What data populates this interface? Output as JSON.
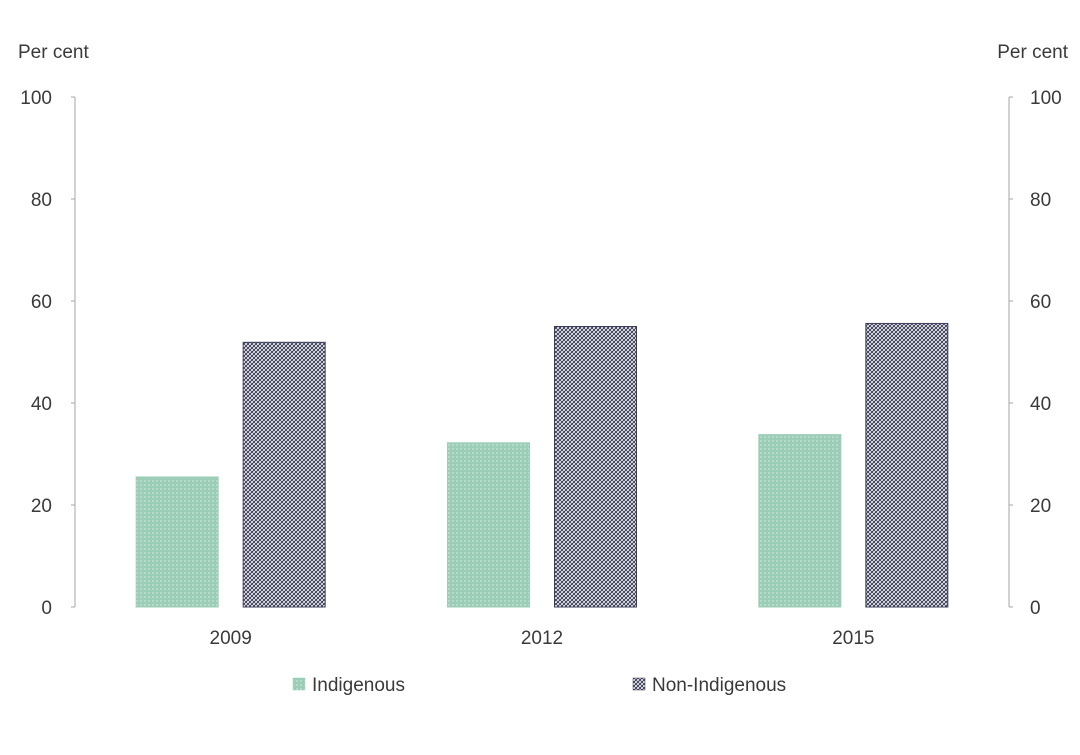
{
  "chart_data": {
    "type": "bar",
    "title": "",
    "ylabel_left": "Per cent",
    "ylabel_right": "Per cent",
    "xlabel": "",
    "categories": [
      "2009",
      "2012",
      "2015"
    ],
    "series": [
      {
        "name": "Indigenous",
        "values": [
          25.5,
          32.2,
          33.8
        ],
        "color": "#9ccdb7",
        "pattern": "dots"
      },
      {
        "name": "Non-Indigenous",
        "values": [
          51.9,
          55.0,
          55.6
        ],
        "color": "#3b3d58",
        "pattern": "crosshatch"
      }
    ],
    "ylim": [
      0,
      100
    ],
    "yticks": [
      "0",
      "20",
      "40",
      "60",
      "80",
      "100"
    ],
    "grid": false,
    "legend_position": "bottom"
  }
}
